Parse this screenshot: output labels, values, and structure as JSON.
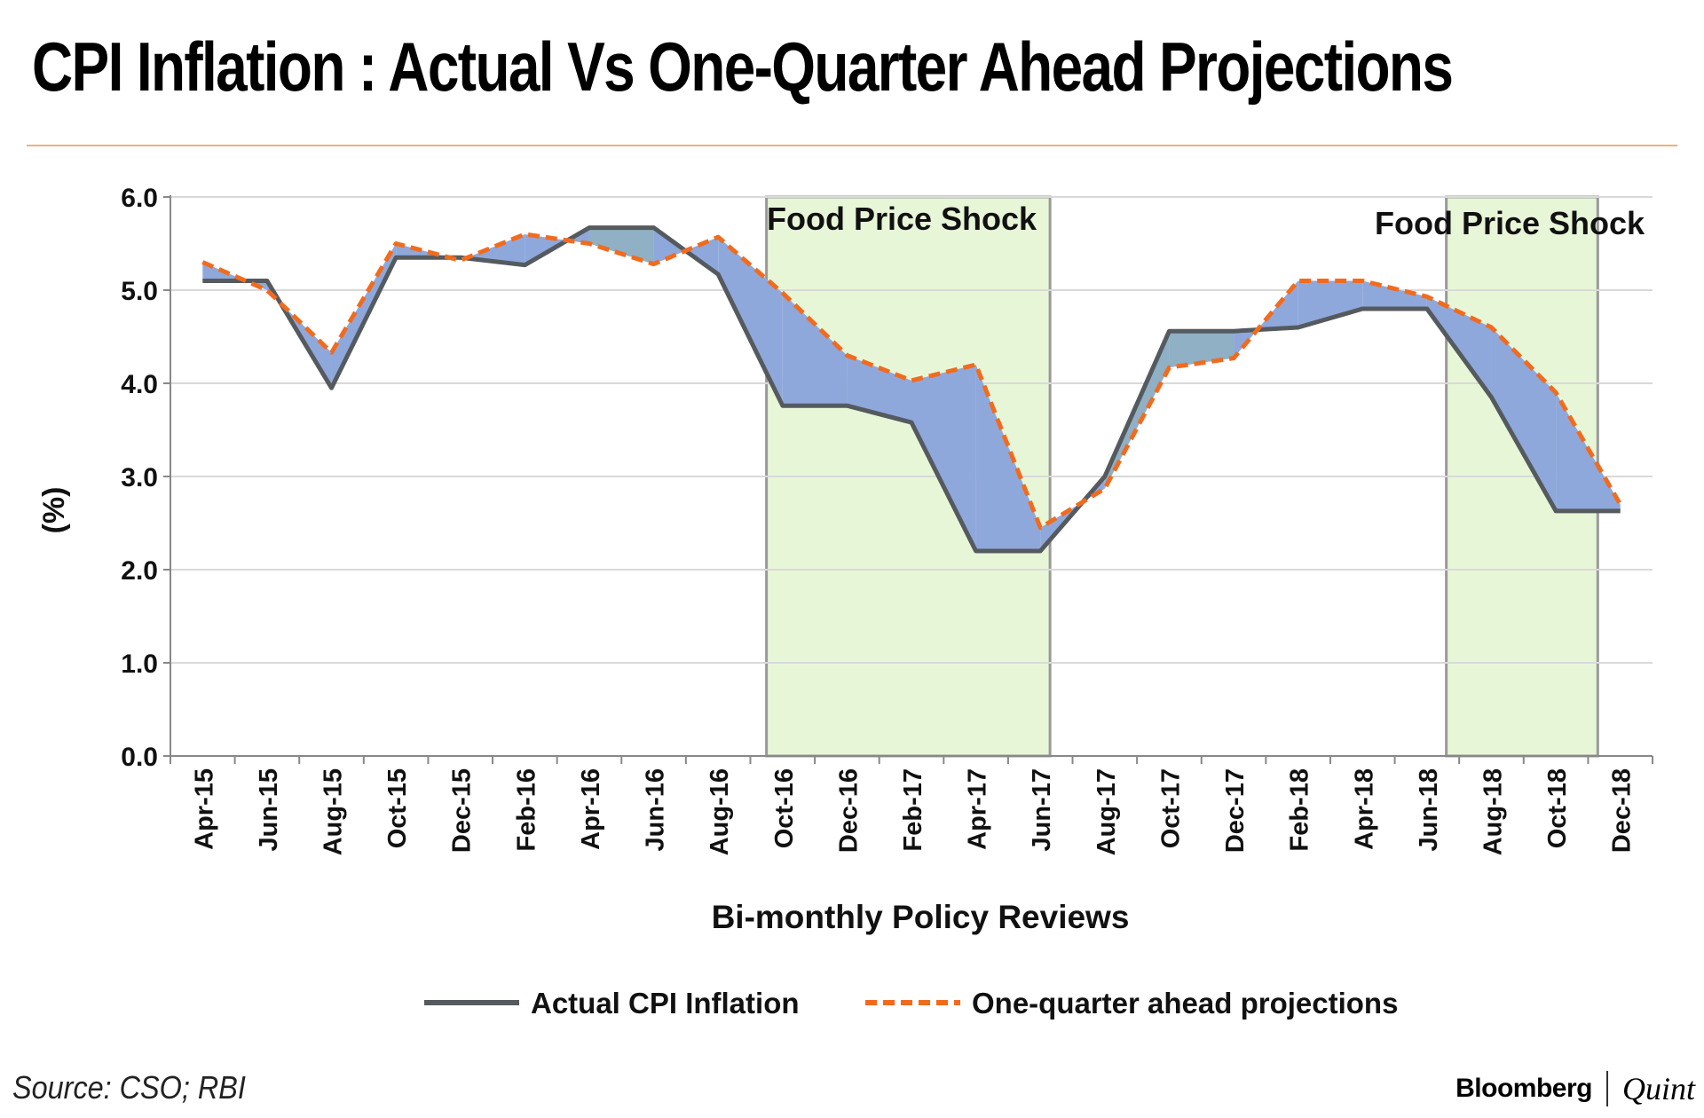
{
  "title": "CPI Inflation : Actual Vs One-Quarter Ahead Projections",
  "source": "Source: CSO; RBI",
  "brand": {
    "left": "Bloomberg",
    "right": "Quint"
  },
  "colors": {
    "actual": "#555a5f",
    "projection": "#f26b1d",
    "fill_over": "#8fa8dc",
    "fill_under": "#8fb0c5",
    "shock_fill": "#e8f6d8",
    "shock_border": "#999999",
    "grid": "#d9d9d9"
  },
  "chart_data": {
    "type": "line",
    "title": "CPI Inflation : Actual Vs One-Quarter Ahead Projections",
    "xlabel": "Bi-monthly Policy Reviews",
    "ylabel": "(%)",
    "ylim": [
      0,
      6
    ],
    "yticks": [
      "0.0",
      "1.0",
      "2.0",
      "3.0",
      "4.0",
      "5.0",
      "6.0"
    ],
    "categories": [
      "Apr-15",
      "Jun-15",
      "Aug-15",
      "Oct-15",
      "Dec-15",
      "Feb-16",
      "Apr-16",
      "Jun-16",
      "Aug-16",
      "Oct-16",
      "Dec-16",
      "Feb-17",
      "Apr-17",
      "Jun-17",
      "Aug-17",
      "Oct-17",
      "Dec-17",
      "Feb-18",
      "Apr-18",
      "Jun-18",
      "Aug-18",
      "Oct-18",
      "Dec-18"
    ],
    "series": [
      {
        "name": "Actual CPI Inflation",
        "style": "solid",
        "values": [
          5.1,
          5.1,
          3.95,
          5.35,
          5.35,
          5.27,
          5.67,
          5.67,
          5.17,
          3.76,
          3.76,
          3.58,
          2.2,
          2.2,
          3.0,
          4.56,
          4.56,
          4.6,
          4.8,
          4.8,
          3.85,
          2.63,
          2.63
        ]
      },
      {
        "name": "One-quarter ahead projections",
        "style": "dashed",
        "values": [
          5.3,
          5.0,
          4.33,
          5.5,
          5.32,
          5.6,
          5.5,
          5.28,
          5.57,
          4.97,
          4.3,
          4.03,
          4.2,
          2.45,
          2.87,
          4.17,
          4.27,
          5.1,
          5.1,
          4.93,
          4.6,
          3.9,
          2.7
        ]
      }
    ],
    "shaded_regions": [
      {
        "label": "Food Price Shock",
        "start": 8.75,
        "end": 13.15
      },
      {
        "label": "Food Price Shock",
        "start": 19.3,
        "end": 21.65
      }
    ],
    "legend_position": "bottom"
  }
}
